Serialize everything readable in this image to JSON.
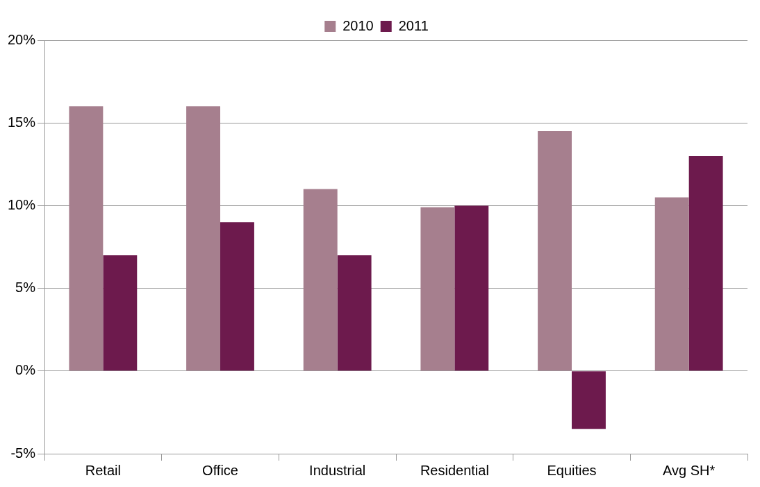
{
  "chart_data": {
    "type": "bar",
    "categories": [
      "Retail",
      "Office",
      "Industrial",
      "Residential",
      "Equities",
      "Avg SH*"
    ],
    "series": [
      {
        "name": "2010",
        "color": "#a67f8e",
        "values": [
          16,
          16,
          11,
          9.9,
          14.5,
          10.5
        ]
      },
      {
        "name": "2011",
        "color": "#6d1a4d",
        "values": [
          7,
          9,
          7,
          10,
          -3.5,
          13
        ]
      }
    ],
    "ylim": [
      -5,
      20
    ],
    "yticks": [
      {
        "value": -5,
        "label": "-5%"
      },
      {
        "value": 0,
        "label": "0%"
      },
      {
        "value": 5,
        "label": "5%"
      },
      {
        "value": 10,
        "label": "10%"
      },
      {
        "value": 15,
        "label": "15%"
      },
      {
        "value": 20,
        "label": "20%"
      }
    ],
    "grid": "y",
    "legend": "top"
  }
}
